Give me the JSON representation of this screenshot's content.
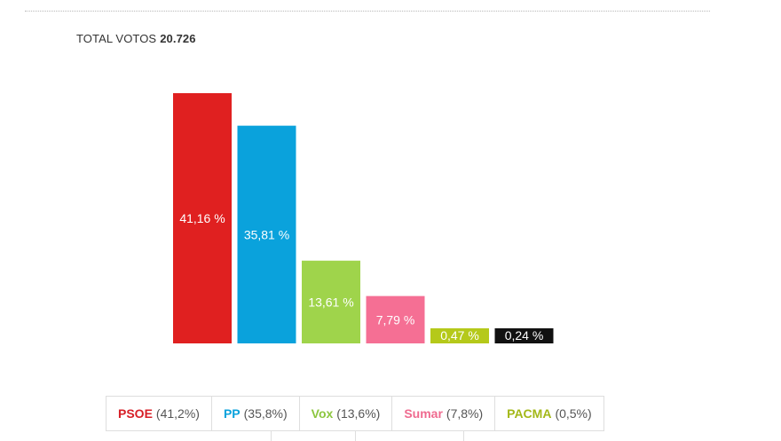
{
  "header": {
    "total_label": "TOTAL VOTOS",
    "total_value": "20.726"
  },
  "chart_data": {
    "type": "bar",
    "categories": [
      "PSOE",
      "PP",
      "Vox",
      "Sumar",
      "PACMA",
      ""
    ],
    "values": [
      41.16,
      35.81,
      13.61,
      7.79,
      0.47,
      0.24
    ],
    "value_labels": [
      "41,16 %",
      "35,81 %",
      "13,61 %",
      "7,79 %",
      "0,47 %",
      "0,24 %"
    ],
    "colors": [
      "#e02020",
      "#0aa2dc",
      "#9fd44b",
      "#f56f94",
      "#b5c91a",
      "#111111"
    ],
    "title": "",
    "xlabel": "",
    "ylabel": "",
    "ylim": [
      0,
      41.16
    ],
    "grid": false,
    "legend": "bottom"
  },
  "legend": [
    {
      "name": "PSOE",
      "value": "(41,2%)",
      "color": "#d71f27"
    },
    {
      "name": "PP",
      "value": "(35,8%)",
      "color": "#0aa2dc"
    },
    {
      "name": "Vox",
      "value": "(13,6%)",
      "color": "#8cc63f"
    },
    {
      "name": "Sumar",
      "value": "(7,8%)",
      "color": "#ef6a8f"
    },
    {
      "name": "PACMA",
      "value": "(0,5%)",
      "color": "#a3b818"
    }
  ]
}
